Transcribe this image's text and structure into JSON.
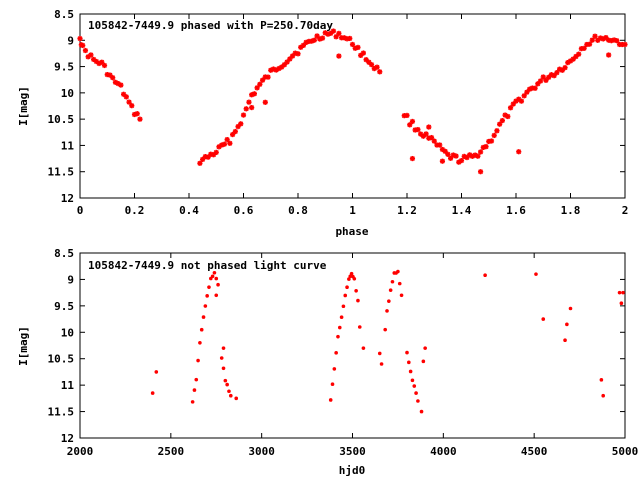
{
  "chart_data": [
    {
      "type": "scatter",
      "title": "105842-7449.9 phased with P=250.70day",
      "xlabel": "phase",
      "ylabel": "I[mag]",
      "xlim": [
        0,
        2
      ],
      "ylim": [
        12,
        8.5
      ],
      "y_inverted": true,
      "xticks": [
        "0",
        "0.2",
        "0.4",
        "0.6",
        "0.8",
        "1",
        "1.2",
        "1.4",
        "1.6",
        "1.8",
        "2"
      ],
      "yticks": [
        "8.5",
        "9",
        "9.5",
        "10",
        "10.5",
        "11",
        "11.5",
        "12"
      ],
      "marker_color": "#ff0000",
      "marker": "star",
      "segments": [
        [
          [
            0.0,
            8.92
          ],
          [
            0.01,
            9.15
          ],
          [
            0.05,
            9.38
          ],
          [
            0.08,
            9.45
          ],
          [
            0.1,
            9.6
          ],
          [
            0.12,
            9.75
          ],
          [
            0.15,
            9.9
          ],
          [
            0.17,
            10.1
          ],
          [
            0.19,
            10.3
          ],
          [
            0.22,
            10.5
          ]
        ],
        [
          [
            0.44,
            11.3
          ],
          [
            0.46,
            11.25
          ],
          [
            0.5,
            11.12
          ],
          [
            0.55,
            10.9
          ],
          [
            0.6,
            10.45
          ],
          [
            0.63,
            10.05
          ],
          [
            0.66,
            9.85
          ],
          [
            0.7,
            9.62
          ],
          [
            0.75,
            9.42
          ],
          [
            0.8,
            9.2
          ],
          [
            0.85,
            9.0
          ],
          [
            0.9,
            8.88
          ],
          [
            0.95,
            8.88
          ],
          [
            1.0,
            9.05
          ],
          [
            1.05,
            9.35
          ],
          [
            1.1,
            9.6
          ]
        ],
        [
          [
            1.19,
            10.4
          ],
          [
            1.21,
            10.55
          ],
          [
            1.25,
            10.75
          ],
          [
            1.3,
            10.95
          ],
          [
            1.35,
            11.2
          ],
          [
            1.4,
            11.28
          ],
          [
            1.45,
            11.2
          ],
          [
            1.5,
            10.95
          ],
          [
            1.55,
            10.55
          ],
          [
            1.6,
            10.2
          ],
          [
            1.65,
            9.95
          ],
          [
            1.7,
            9.75
          ],
          [
            1.75,
            9.6
          ],
          [
            1.8,
            9.4
          ],
          [
            1.85,
            9.1
          ],
          [
            1.9,
            8.95
          ],
          [
            1.95,
            8.98
          ],
          [
            2.0,
            9.08
          ]
        ]
      ],
      "points": [
        [
          0.95,
          9.3
        ],
        [
          1.22,
          11.25
        ],
        [
          1.47,
          11.5
        ],
        [
          1.61,
          11.12
        ],
        [
          1.94,
          9.28
        ],
        [
          0.63,
          10.28
        ],
        [
          0.68,
          10.18
        ],
        [
          1.28,
          10.65
        ],
        [
          1.33,
          11.3
        ]
      ]
    },
    {
      "type": "scatter",
      "title": "105842-7449.9 not phased light curve",
      "xlabel": "hjd0",
      "ylabel": "I[mag]",
      "xlim": [
        2000,
        5000
      ],
      "ylim": [
        12,
        8.5
      ],
      "y_inverted": true,
      "xticks": [
        "2000",
        "2500",
        "3000",
        "3500",
        "4000",
        "4500",
        "5000"
      ],
      "yticks": [
        "8.5",
        "9",
        "9.5",
        "10",
        "10.5",
        "11",
        "11.5",
        "12"
      ],
      "marker_color": "#ff0000",
      "marker": "dot",
      "segments": [
        [
          [
            2620,
            11.3
          ],
          [
            2640,
            10.9
          ],
          [
            2660,
            10.2
          ],
          [
            2680,
            9.7
          ],
          [
            2700,
            9.3
          ],
          [
            2720,
            9.0
          ],
          [
            2740,
            8.88
          ],
          [
            2760,
            9.1
          ]
        ],
        [
          [
            2780,
            10.5
          ],
          [
            2800,
            10.9
          ],
          [
            2830,
            11.2
          ]
        ],
        [
          [
            3380,
            11.3
          ],
          [
            3400,
            10.7
          ],
          [
            3420,
            10.1
          ],
          [
            3440,
            9.7
          ],
          [
            3460,
            9.3
          ],
          [
            3480,
            9.0
          ],
          [
            3495,
            8.9
          ],
          [
            3510,
            9.0
          ],
          [
            3530,
            9.4
          ]
        ],
        [
          [
            3690,
            9.6
          ],
          [
            3710,
            9.2
          ],
          [
            3730,
            8.88
          ],
          [
            3750,
            8.85
          ],
          [
            3770,
            9.3
          ]
        ],
        [
          [
            3800,
            10.4
          ],
          [
            3830,
            10.9
          ],
          [
            3860,
            11.3
          ]
        ]
      ],
      "points": [
        [
          2400,
          11.15
        ],
        [
          2420,
          10.75
        ],
        [
          2750,
          9.3
        ],
        [
          2790,
          10.3
        ],
        [
          2860,
          11.25
        ],
        [
          3540,
          9.9
        ],
        [
          3560,
          10.3
        ],
        [
          3650,
          10.4
        ],
        [
          3660,
          10.6
        ],
        [
          3680,
          9.95
        ],
        [
          3880,
          11.5
        ],
        [
          3890,
          10.55
        ],
        [
          3900,
          10.3
        ],
        [
          4230,
          8.92
        ],
        [
          4510,
          8.9
        ],
        [
          4550,
          9.75
        ],
        [
          4670,
          10.15
        ],
        [
          4680,
          9.85
        ],
        [
          4700,
          9.55
        ],
        [
          4870,
          10.9
        ],
        [
          4880,
          11.2
        ],
        [
          4970,
          9.25
        ],
        [
          4980,
          9.45
        ],
        [
          5000,
          9.25
        ]
      ]
    }
  ]
}
